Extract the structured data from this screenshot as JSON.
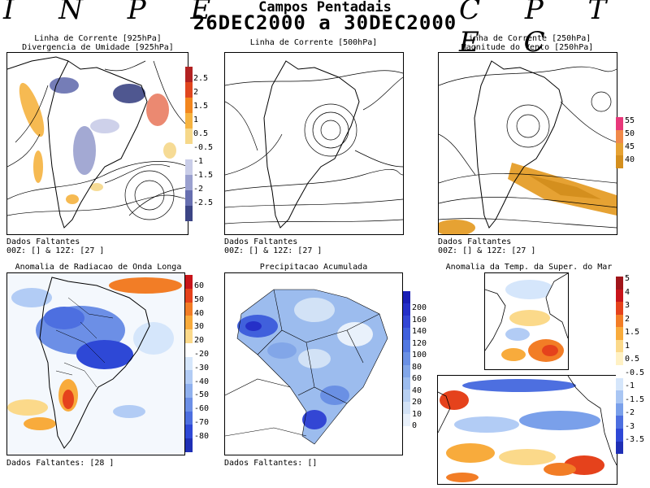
{
  "header": {
    "left_brand": "I N P E",
    "right_brand": "C P T E C",
    "title": "Campos Pentadais",
    "period": "26DEC2000 a 30DEC2000"
  },
  "panels": {
    "p925": {
      "title_line1": "Linha de Corrente [925hPa]",
      "title_line2": "Divergencia de Umidade [925hPa]",
      "missing_line1": "Dados Faltantes",
      "missing_line2": "00Z: [] & 12Z: [27 ]",
      "colorbar": {
        "labels": [
          "2.5",
          "2",
          "1.5",
          "1",
          "0.5",
          "-0.5",
          "-1",
          "-1.5",
          "-2",
          "-2.5"
        ],
        "colors": [
          "#b22222",
          "#e0461f",
          "#f2861e",
          "#f6b340",
          "#f6d88a",
          "#ffffff",
          "#c9cde8",
          "#9aa0cf",
          "#676fb0",
          "#3c4585"
        ]
      }
    },
    "p500": {
      "title": "Linha de Corrente [500hPa]",
      "missing_line1": "Dados Faltantes",
      "missing_line2": "00Z: [] & 12Z: [27 ]"
    },
    "p250": {
      "title_line1": "Linha de Corrente [250hPa]",
      "title_line2": "Magnitude do Vento [250hPa]",
      "missing_line1": "Dados Faltantes",
      "missing_line2": "00Z: [] & 12Z: [27 ]",
      "colorbar": {
        "labels": [
          "55",
          "50",
          "45",
          "40"
        ],
        "colors": [
          "#e8387a",
          "#f0894a",
          "#e6a233",
          "#d48f1e"
        ]
      }
    },
    "olr": {
      "title": "Anomalia de Radiacao de Onda Longa",
      "missing": "Dados Faltantes: [28 ]",
      "colorbar": {
        "labels": [
          "60",
          "50",
          "40",
          "30",
          "20",
          "-20",
          "-30",
          "-40",
          "-50",
          "-60",
          "-70",
          "-80"
        ],
        "colors": [
          "#c8141a",
          "#e5421c",
          "#f27d26",
          "#f8ab3c",
          "#fbd98a",
          "#ffffff",
          "#d5e6fb",
          "#b2ccf5",
          "#8fb0ee",
          "#6c8fe6",
          "#4d6fe0",
          "#2e48d6",
          "#1f2fb5"
        ]
      }
    },
    "precip": {
      "title": "Precipitacao Acumulada",
      "missing": "Dados Faltantes: []",
      "colorbar": {
        "labels": [
          "200",
          "160",
          "140",
          "120",
          "100",
          "80",
          "60",
          "40",
          "20",
          "10",
          "0"
        ],
        "colors": [
          "#1a1fb5",
          "#2530c8",
          "#3346d4",
          "#4060dc",
          "#5278e0",
          "#6a90e4",
          "#82a6e8",
          "#9cbcee",
          "#b8d0f2",
          "#d2e2f6",
          "#e9f1fb"
        ]
      }
    },
    "sst": {
      "title": "Anomalia da Temp. da Super. do Mar",
      "colorbar": {
        "labels": [
          "5",
          "4",
          "3",
          "2",
          "1.5",
          "1",
          "0.5",
          "-0.5",
          "-1",
          "-1.5",
          "-2",
          "-3",
          "-3.5"
        ],
        "colors": [
          "#a0151a",
          "#c8141a",
          "#e5421c",
          "#f27d26",
          "#f8ab3c",
          "#fbd98a",
          "#fff1c4",
          "#ffffff",
          "#d5e6fb",
          "#a9c6f3",
          "#7aa0ea",
          "#4d6fe0",
          "#2e48d6",
          "#1f2fb5"
        ]
      }
    }
  }
}
